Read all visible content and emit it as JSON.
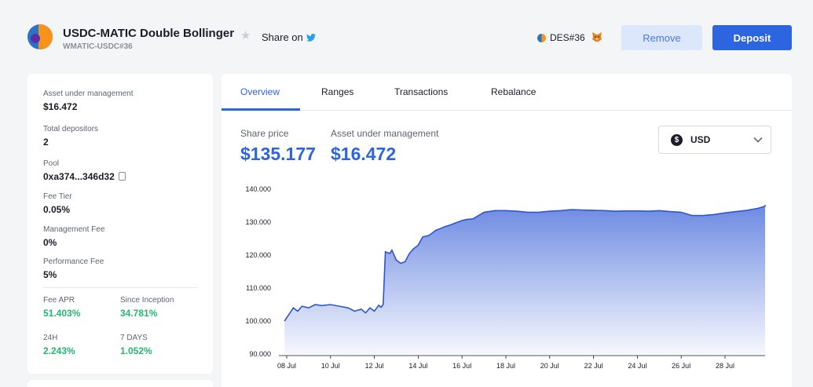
{
  "header": {
    "title": "USDC-MATIC Double Bollinger",
    "subtitle": "WMATIC-USDC#36",
    "share_label": "Share on",
    "des_label": "DES#36",
    "remove_label": "Remove",
    "deposit_label": "Deposit"
  },
  "sidebar": {
    "aum_label": "Asset under management",
    "aum_value": "$16.472",
    "depositors_label": "Total depositors",
    "depositors_value": "2",
    "pool_label": "Pool",
    "pool_value": "0xa374...346d32",
    "fee_tier_label": "Fee Tier",
    "fee_tier_value": "0.05%",
    "mgmt_fee_label": "Management Fee",
    "mgmt_fee_value": "0%",
    "perf_fee_label": "Performance Fee",
    "perf_fee_value": "5%",
    "fee_apr_label": "Fee APR",
    "fee_apr_value": "51.403%",
    "since_inception_label": "Since Inception",
    "since_inception_value": "34.781%",
    "h24_label": "24H",
    "h24_value": "2.243%",
    "d7_label": "7 DAYS",
    "d7_value": "1.052%"
  },
  "tabs": [
    "Overview",
    "Ranges",
    "Transactions",
    "Rebalance"
  ],
  "metrics": {
    "share_price_label": "Share price",
    "share_price_value": "$135.177",
    "aum_label": "Asset under management",
    "aum_value": "$16.472"
  },
  "currency_select": {
    "value": "USD",
    "symbol": "$"
  },
  "colors": {
    "accent": "#2d64e0",
    "positive": "#22b573",
    "remove_bg": "#dde7fb"
  },
  "icons": {
    "share": "twitter-icon",
    "favorite": "star-icon",
    "wallet": "metamask-fox-icon",
    "copy": "copy-icon",
    "dropdown": "chevron-down-icon"
  },
  "chart_data": {
    "type": "area",
    "title": "",
    "xlabel": "",
    "ylabel": "",
    "ylim": [
      90,
      140
    ],
    "yticks": [
      "90.000",
      "100.000",
      "110.000",
      "120.000",
      "130.000",
      "140.000"
    ],
    "xticks": [
      "08 Jul",
      "10 Jul",
      "12 Jul",
      "14 Jul",
      "16 Jul",
      "18 Jul",
      "20 Jul",
      "22 Jul",
      "24 Jul",
      "26 Jul",
      "28 Jul"
    ],
    "x_start": "2022-07-08",
    "x": [
      -0.1,
      0.0,
      0.3,
      0.5,
      0.7,
      1.0,
      1.3,
      1.6,
      2.0,
      2.4,
      2.8,
      3.1,
      3.4,
      3.6,
      3.8,
      4.0,
      4.2,
      4.3,
      4.4,
      4.5,
      4.7,
      4.8,
      4.9,
      5.0,
      5.1,
      5.2,
      5.4,
      5.6,
      5.8,
      6.0,
      6.2,
      6.5,
      6.8,
      7.0,
      7.2,
      7.4,
      7.6,
      7.8,
      8.0,
      8.2,
      8.5,
      9.0,
      9.5,
      10.0,
      10.5,
      11.0,
      11.5,
      12.0,
      12.5,
      13.0,
      13.5,
      14.0,
      14.5,
      15.0,
      15.5,
      16.0,
      16.5,
      17.0,
      17.5,
      18.0,
      18.5,
      19.0,
      19.5,
      20.0,
      20.5,
      21.0,
      21.5,
      22.0,
      22.5,
      22.9
    ],
    "series": [
      {
        "values": [
          100.0,
          101.0,
          104.0,
          103.0,
          104.5,
          104.0,
          105.0,
          104.7,
          105.0,
          104.5,
          104.0,
          103.0,
          103.6,
          102.5,
          104.0,
          103.0,
          104.8,
          104.2,
          105.0,
          121.0,
          120.5,
          121.5,
          120.0,
          118.5,
          118.0,
          117.5,
          118.0,
          120.5,
          122.0,
          123.0,
          125.5,
          126.0,
          127.5,
          128.0,
          128.6,
          129.0,
          129.5,
          130.0,
          130.5,
          130.8,
          131.0,
          133.0,
          133.5,
          133.5,
          133.3,
          133.0,
          133.0,
          133.3,
          133.5,
          133.8,
          133.7,
          133.6,
          133.5,
          133.3,
          133.4,
          133.4,
          133.3,
          133.5,
          133.2,
          133.0,
          132.0,
          132.0,
          132.3,
          132.8,
          133.2,
          133.6,
          134.2,
          134.8,
          135.0,
          135.2
        ]
      }
    ],
    "grid": false,
    "legend": "none"
  }
}
